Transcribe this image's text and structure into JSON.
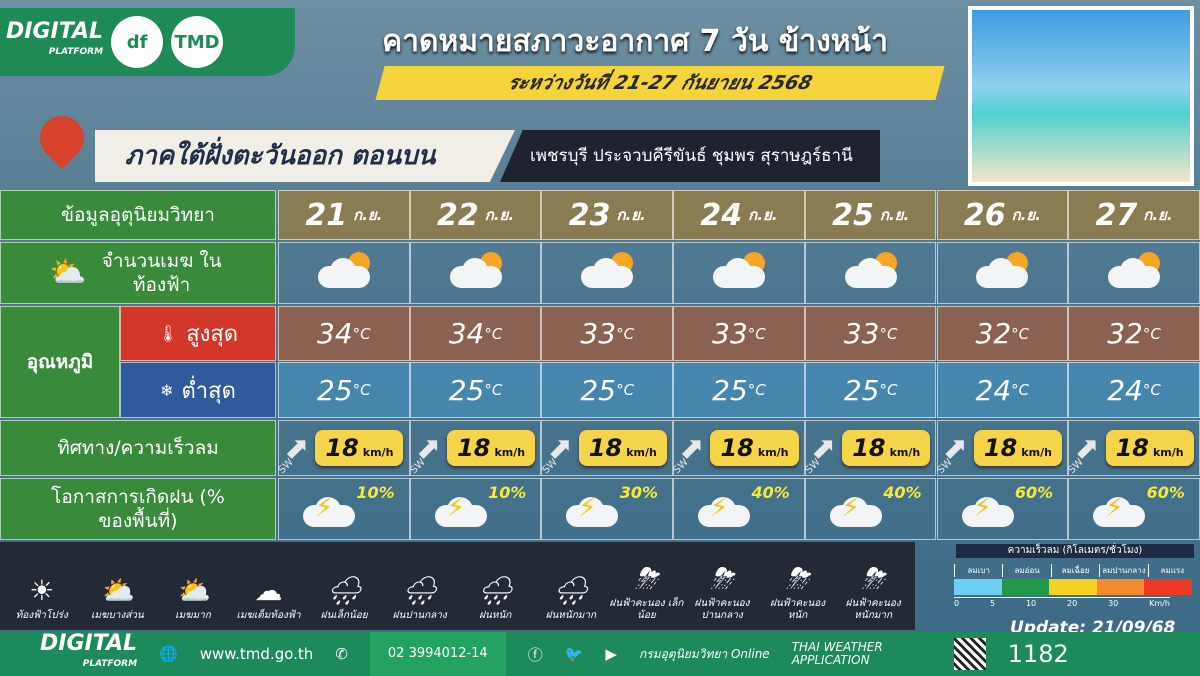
{
  "brand": {
    "digital": "DIGITAL",
    "platform": "PLATFORM",
    "logo_df": "df",
    "logo_tmd": "TMD"
  },
  "title": "คาดหมายสภาวะอากาศ 7 วัน ข้างหน้า",
  "subtitle": "ระหว่างวันที่ 21-27 กันยายน 2568",
  "region": "ภาคใต้ฝั่งตะวันออก ตอนบน",
  "provinces": "เพชรบุรี ประจวบคีรีขันธ์ ชุมพร สุราษฎร์ธานี",
  "table": {
    "header_label": "ข้อมูลอุตุนิยมวิทยา",
    "cloud_label": "จำนวนเมฆ ในท้องฟ้า",
    "temp_label": "อุณหภูมิ",
    "max_label": "สูงสุด",
    "min_label": "ต่ำสุด",
    "wind_label": "ทิศทาง/ความเร็วลม",
    "rain_label": "โอกาสการเกิดฝน (% ของพื้นที่)",
    "month_abbr": "ก.ย.",
    "temp_unit": "°C",
    "wind_unit": "km/h",
    "days": [
      {
        "date": "21",
        "cloud": "partly-cloudy",
        "max": "34",
        "min": "25",
        "wind_dir": "SW",
        "wind_speed": "18",
        "rain_pct": "10%"
      },
      {
        "date": "22",
        "cloud": "partly-cloudy",
        "max": "34",
        "min": "25",
        "wind_dir": "SW",
        "wind_speed": "18",
        "rain_pct": "10%"
      },
      {
        "date": "23",
        "cloud": "partly-cloudy",
        "max": "33",
        "min": "25",
        "wind_dir": "SW",
        "wind_speed": "18",
        "rain_pct": "30%"
      },
      {
        "date": "24",
        "cloud": "partly-cloudy",
        "max": "33",
        "min": "25",
        "wind_dir": "SW",
        "wind_speed": "18",
        "rain_pct": "40%"
      },
      {
        "date": "25",
        "cloud": "partly-cloudy",
        "max": "33",
        "min": "25",
        "wind_dir": "SW",
        "wind_speed": "18",
        "rain_pct": "40%"
      },
      {
        "date": "26",
        "cloud": "mostly-cloudy",
        "max": "32",
        "min": "24",
        "wind_dir": "SW",
        "wind_speed": "18",
        "rain_pct": "60%"
      },
      {
        "date": "27",
        "cloud": "mostly-cloudy",
        "max": "32",
        "min": "24",
        "wind_dir": "SW",
        "wind_speed": "18",
        "rain_pct": "60%"
      }
    ]
  },
  "legend": [
    {
      "label": "ท้องฟ้าโปร่ง",
      "icon": "☀"
    },
    {
      "label": "เมฆบางส่วน",
      "icon": "⛅"
    },
    {
      "label": "เมฆมาก",
      "icon": "⛅"
    },
    {
      "label": "เมฆเต็มท้องฟ้า",
      "icon": "☁"
    },
    {
      "label": "ฝนเล็กน้อย",
      "icon": "🌧"
    },
    {
      "label": "ฝนปานกลาง",
      "icon": "🌧"
    },
    {
      "label": "ฝนหนัก",
      "icon": "🌧"
    },
    {
      "label": "ฝนหนักมาก",
      "icon": "🌧"
    },
    {
      "label": "ฝนฟ้าคะนอง เล็กน้อย",
      "icon": "⛈"
    },
    {
      "label": "ฝนฟ้าคะนอง ปานกลาง",
      "icon": "⛈"
    },
    {
      "label": "ฝนฟ้าคะนอง หนัก",
      "icon": "⛈"
    },
    {
      "label": "ฝนฟ้าคะนอง หนักมาก",
      "icon": "⛈"
    }
  ],
  "wind_scale": {
    "title": "ความเร็วลม (กิโลเมตร/ชั่วโมง)",
    "levels": [
      {
        "label": "ลมเบา",
        "color": "#6fd0f5"
      },
      {
        "label": "ลมอ่อน",
        "color": "#1e9a4a"
      },
      {
        "label": "ลมเฉื่อย",
        "color": "#f5d21f"
      },
      {
        "label": "ลมปานกลาง",
        "color": "#f28a30"
      },
      {
        "label": "ลมแรง",
        "color": "#ee3a24"
      }
    ],
    "ticks": [
      "0",
      "5",
      "10",
      "20",
      "30"
    ],
    "unit": "Km/h"
  },
  "update": "Update: 21/09/68",
  "footer": {
    "website": "www.tmd.go.th",
    "phone": "02 3994012-14",
    "dept": "กรมอุตุนิยมวิทยา",
    "online": "Online",
    "app": "THAI WEATHER APPLICATION",
    "hotline": "1182"
  }
}
